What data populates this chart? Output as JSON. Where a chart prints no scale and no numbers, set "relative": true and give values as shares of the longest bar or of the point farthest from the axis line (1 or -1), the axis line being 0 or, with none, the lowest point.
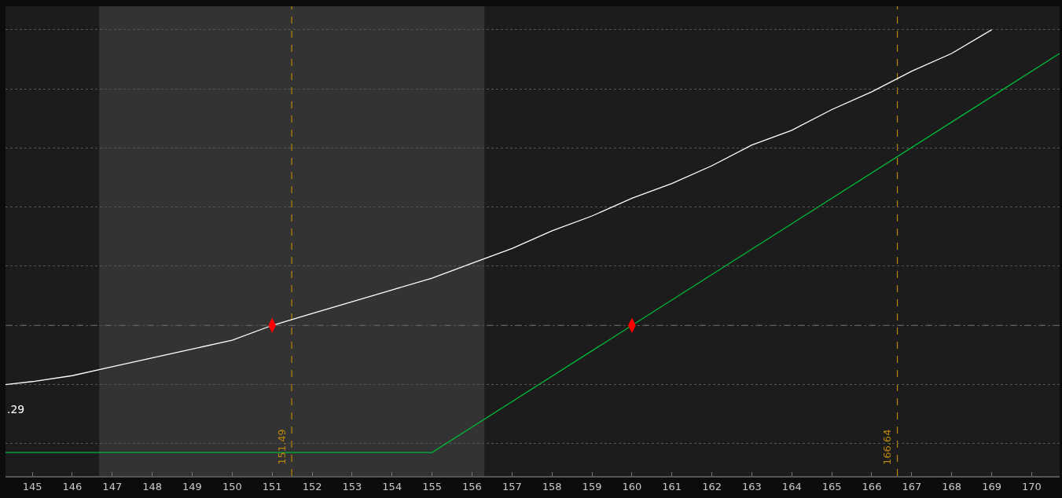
{
  "chart_data": {
    "type": "line",
    "relative": true,
    "grid": "y",
    "xlim": [
      144.33,
      170.7
    ],
    "xticks": [
      145,
      146,
      147,
      148,
      149,
      150,
      151,
      152,
      153,
      154,
      155,
      156,
      157,
      158,
      159,
      160,
      161,
      162,
      163,
      164,
      165,
      166,
      167,
      168,
      169,
      170
    ],
    "series": [
      {
        "color": "#ffffff",
        "x": [
          144.33,
          145,
          146,
          147,
          148,
          149,
          150,
          151,
          152,
          153,
          154,
          155,
          156,
          157,
          158,
          159,
          160,
          161,
          162,
          163,
          164,
          165,
          166,
          167,
          168,
          169
        ],
        "values": [
          -0.2,
          -0.19,
          -0.17,
          -0.14,
          -0.11,
          -0.08,
          -0.05,
          0,
          0.04,
          0.08,
          0.12,
          0.16,
          0.21,
          0.26,
          0.32,
          0.37,
          0.43,
          0.48,
          0.54,
          0.61,
          0.66,
          0.73,
          0.79,
          0.86,
          0.92,
          1.0
        ]
      },
      {
        "color": "#00b83a",
        "x": [
          144.33,
          155,
          160,
          170.7
        ],
        "values": [
          -0.43,
          -0.43,
          0,
          0.92
        ]
      },
      {
        "type": "scatter",
        "color": "#ff0000",
        "x": [
          151,
          160
        ],
        "values": [
          0,
          0
        ]
      }
    ],
    "ref_lines": [
      {
        "axis": "y",
        "value": 0,
        "color": "#7a7a7a",
        "line_style": "dashed"
      },
      {
        "axis": "x",
        "value": 151.49,
        "label": "151.49",
        "color": "#b8860b",
        "line_style": "dashed"
      },
      {
        "axis": "x",
        "value": 166.64,
        "label": "166.64",
        "color": "#b8860b",
        "line_style": "dashed"
      }
    ],
    "bands": [
      {
        "axis": "x",
        "from": 146.67,
        "to": 156.31,
        "color": "#333333"
      }
    ],
    "annotations": [
      ".29"
    ]
  }
}
